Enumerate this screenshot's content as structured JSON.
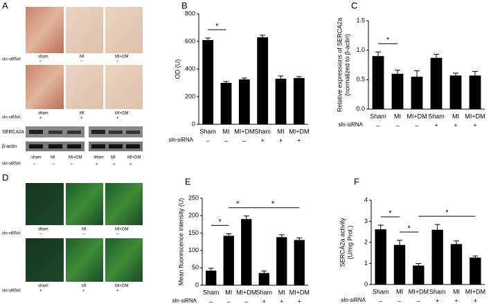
{
  "panels": {
    "A": {
      "letter": "A",
      "columns": [
        "sham",
        "MI",
        "MI+DM"
      ],
      "row_label": "sln-siRNA",
      "row_signs": [
        "–",
        "+"
      ],
      "blot": {
        "rows": [
          "SERCA2a",
          "β-actin"
        ],
        "lanes": [
          "sham",
          "MI",
          "MI+DM",
          "sham",
          "MI",
          "MI+DM"
        ],
        "signs": [
          "–",
          "–",
          "–",
          "+",
          "+",
          "+"
        ],
        "row_label": "sln-siRNA"
      }
    },
    "D": {
      "letter": "D",
      "columns": [
        "sham",
        "MI",
        "MI+DM"
      ],
      "row_label": "sln-siRNA",
      "row_signs": [
        "–",
        "+"
      ]
    }
  },
  "chart_data": [
    {
      "type": "bar",
      "panel": "B",
      "ylabel": [
        "OD (U)"
      ],
      "categories": [
        "Sham",
        "MI",
        "MI+DM",
        "Sham",
        "MI",
        "MI+DM"
      ],
      "values": [
        610,
        300,
        325,
        630,
        330,
        335
      ],
      "errors": [
        15,
        10,
        10,
        15,
        20,
        10
      ],
      "color": "#000000",
      "ylim": [
        0,
        800
      ],
      "yticks": [
        0,
        200,
        400,
        600,
        800
      ],
      "group_label": "sln-siRNA",
      "group_signs": [
        "–",
        "–",
        "–",
        "+",
        "+",
        "+"
      ],
      "significance": [
        {
          "from": 0,
          "to": 1,
          "label": "*"
        }
      ]
    },
    {
      "type": "bar",
      "panel": "C",
      "ylabel": [
        "Relative expressions of SERCA2a",
        "(normalized to β-actin)"
      ],
      "categories": [
        "Sham",
        "MI",
        "MI+DM",
        "Sham",
        "MI",
        "MI+DM"
      ],
      "values": [
        0.9,
        0.6,
        0.55,
        0.87,
        0.57,
        0.57
      ],
      "errors": [
        0.07,
        0.06,
        0.1,
        0.06,
        0.04,
        0.07
      ],
      "color": "#000000",
      "ylim": [
        0,
        1.5
      ],
      "yticks": [
        {
          "value": 0,
          "label": "0.0"
        },
        {
          "value": 0.5,
          "label": "0.5"
        },
        {
          "value": 1,
          "label": "1.0"
        },
        {
          "value": 1.5,
          "label": "1.5"
        }
      ],
      "group_label": "sln-siRNA",
      "group_signs": [
        "–",
        "–",
        "–",
        "+",
        "+",
        "+"
      ],
      "significance": [
        {
          "from": 0,
          "to": 1,
          "label": "*"
        }
      ]
    },
    {
      "type": "bar",
      "panel": "E",
      "ylabel": [
        "Mean fluorescence intensity (U)"
      ],
      "categories": [
        "Sham",
        "MI",
        "MI+DM",
        "Sham",
        "MI",
        "MI+DM"
      ],
      "values": [
        42,
        142,
        190,
        35,
        138,
        130
      ],
      "errors": [
        7,
        6,
        9,
        6,
        7,
        6
      ],
      "color": "#000000",
      "ylim": [
        0,
        250
      ],
      "yticks": [
        0,
        50,
        100,
        150,
        200,
        250
      ],
      "group_label": "sln-siRNA",
      "group_signs": [
        "–",
        "–",
        "–",
        "+",
        "+",
        "+"
      ],
      "significance": [
        {
          "from": 0,
          "to": 1,
          "label": "*"
        },
        {
          "from": 1,
          "to": 2,
          "label": "*"
        },
        {
          "from": 2,
          "to": 5,
          "label": "*"
        }
      ]
    },
    {
      "type": "bar",
      "panel": "F",
      "ylabel": [
        "SERCA2a activity",
        "(U/mg Prot.)"
      ],
      "categories": [
        "Sham",
        "MI",
        "MI+DM",
        "Sham",
        "MI",
        "MI+DM"
      ],
      "values": [
        2.62,
        1.88,
        0.9,
        2.6,
        1.92,
        1.28
      ],
      "errors": [
        0.2,
        0.22,
        0.1,
        0.25,
        0.15,
        0.07
      ],
      "color": "#000000",
      "ylim": [
        0,
        4
      ],
      "yticks": [
        0,
        1,
        2,
        3,
        4
      ],
      "group_label": "sln-siRNA",
      "group_signs": [
        "–",
        "–",
        "–",
        "+",
        "+",
        "+"
      ],
      "significance": [
        {
          "from": 0,
          "to": 1,
          "label": "*"
        },
        {
          "from": 1,
          "to": 2,
          "label": "*"
        },
        {
          "from": 2,
          "to": 5,
          "label": "*"
        }
      ]
    }
  ]
}
